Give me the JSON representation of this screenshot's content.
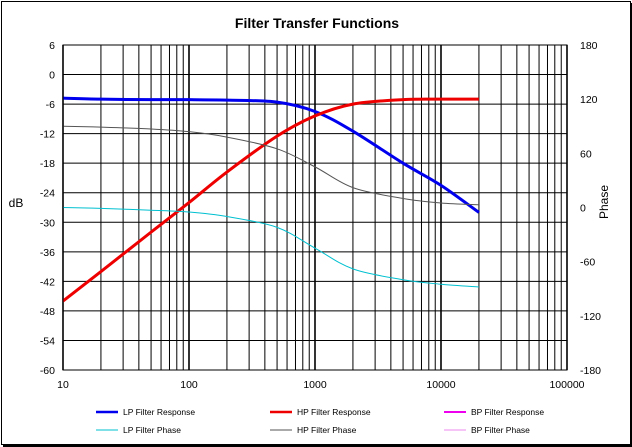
{
  "chart_data": {
    "type": "line",
    "title": "Filter Transfer Functions",
    "xlabel": "",
    "ylabel": "dB",
    "y2label": "Phase",
    "xscale": "log",
    "xlim": [
      10,
      100000
    ],
    "ylim": [
      -60,
      6
    ],
    "y2lim": [
      -180,
      180
    ],
    "x_ticks": [
      10,
      100,
      1000,
      10000,
      100000
    ],
    "y_ticks": [
      6,
      0,
      -6,
      -12,
      -18,
      -24,
      -30,
      -36,
      -42,
      -48,
      -54,
      -60
    ],
    "y2_ticks": [
      180,
      120,
      60,
      0,
      -60,
      -120,
      -180
    ],
    "grid": true,
    "legend_position": "bottom",
    "series": [
      {
        "name": "LP Filter Response",
        "axis": "left",
        "color": "#0000ee",
        "width": 3,
        "x": [
          10,
          20,
          50,
          100,
          200,
          500,
          1000,
          2000,
          5000,
          10000,
          20000
        ],
        "y": [
          -4.8,
          -5.0,
          -5.1,
          -5.1,
          -5.2,
          -5.6,
          -7.5,
          -11.5,
          -18.0,
          -22.5,
          -28.0
        ]
      },
      {
        "name": "HP Filter Response",
        "axis": "left",
        "color": "#ee0000",
        "width": 3,
        "x": [
          10,
          20,
          50,
          100,
          200,
          500,
          1000,
          2000,
          5000,
          10000,
          20000
        ],
        "y": [
          -46.0,
          -40.0,
          -32.0,
          -26.0,
          -19.8,
          -12.5,
          -8.4,
          -6.0,
          -5.1,
          -5.0,
          -5.0
        ]
      },
      {
        "name": "BP Filter Response",
        "axis": "left",
        "color": "#ee00ee",
        "width": 2,
        "x": [],
        "y": []
      },
      {
        "name": "LP Filter Phase",
        "axis": "right",
        "color": "#00c0d0",
        "width": 1,
        "x": [
          10,
          20,
          50,
          100,
          200,
          500,
          1000,
          2000,
          5000,
          10000,
          20000
        ],
        "y": [
          0,
          -1,
          -3,
          -5,
          -10,
          -22,
          -45,
          -68,
          -80,
          -85,
          -88
        ]
      },
      {
        "name": "HP Filter Phase",
        "axis": "right",
        "color": "#555555",
        "width": 1,
        "x": [
          10,
          20,
          50,
          100,
          200,
          500,
          1000,
          2000,
          5000,
          10000,
          20000
        ],
        "y": [
          90,
          89,
          87,
          84,
          78,
          65,
          45,
          22,
          10,
          5,
          3
        ]
      },
      {
        "name": "BP Filter Phase",
        "axis": "right",
        "color": "#ee88ee",
        "width": 1,
        "x": [],
        "y": []
      }
    ]
  }
}
